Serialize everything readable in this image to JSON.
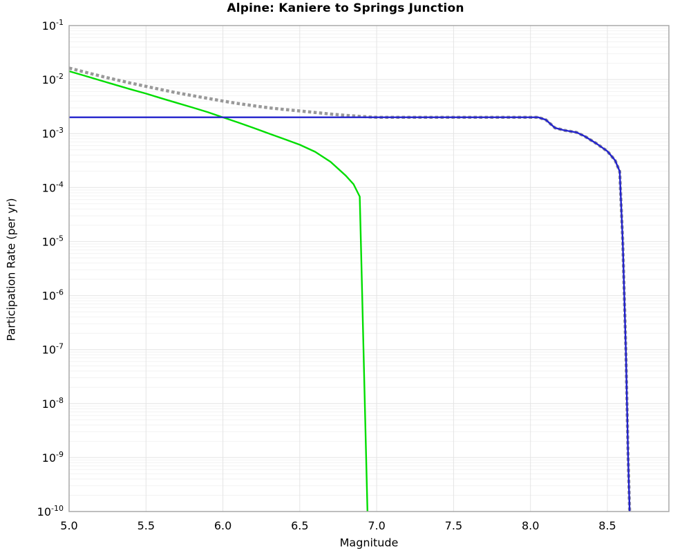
{
  "title": "Alpine: Kaniere to Springs Junction",
  "axes": {
    "x": {
      "label": "Magnitude",
      "tick_values": [
        5.0,
        5.5,
        6.0,
        6.5,
        7.0,
        7.5,
        8.0,
        8.5
      ],
      "tick_labels": [
        "5.0",
        "5.5",
        "6.0",
        "6.5",
        "7.0",
        "7.5",
        "8.0",
        "8.5"
      ]
    },
    "y": {
      "label": "Participation Rate (per yr)",
      "scale": "log",
      "tick_base": "10",
      "tick_exponents": [
        "-1",
        "-2",
        "-3",
        "-4",
        "-5",
        "-6",
        "-7",
        "-8",
        "-9",
        "-10"
      ]
    }
  },
  "colors": {
    "green_line": "#00dd00",
    "blue_line": "#2222cc",
    "gray_dotted": "#999999",
    "grid_major": "#e4e4e4",
    "grid_minor": "#f2f2f2",
    "plot_border": "#a8a8a8",
    "background": "#ffffff",
    "text": "#000000"
  },
  "chart_data": {
    "type": "line",
    "title": "Alpine: Kaniere to Springs Junction",
    "xlabel": "Magnitude",
    "ylabel": "Participation Rate (per yr)",
    "xlim": [
      5.0,
      8.9
    ],
    "ylim": [
      1e-10,
      0.1
    ],
    "yscale": "log",
    "grid": true,
    "legend": false,
    "series": [
      {
        "name": "gray-dotted-total",
        "style": "dotted",
        "color": "#999999",
        "x": [
          5.0,
          5.1,
          5.2,
          5.3,
          5.4,
          5.5,
          5.6,
          5.7,
          5.8,
          5.9,
          6.0,
          6.1,
          6.2,
          6.3,
          6.4,
          6.5,
          6.6,
          6.7,
          6.8,
          6.9,
          7.0,
          7.25,
          7.5,
          7.75,
          8.0,
          8.05,
          8.1,
          8.16,
          8.22,
          8.3,
          8.35,
          8.43,
          8.5,
          8.55,
          8.58,
          8.6,
          8.62,
          8.635,
          8.645
        ],
        "y": [
          0.0163,
          0.0138,
          0.0117,
          0.01,
          0.0086,
          0.0075,
          0.0065,
          0.0057,
          0.00505,
          0.0045,
          0.004,
          0.0036,
          0.00327,
          0.003,
          0.00279,
          0.00262,
          0.00246,
          0.0023,
          0.00217,
          0.00207,
          0.002,
          0.002,
          0.002,
          0.002,
          0.002,
          0.002,
          0.0018,
          0.00127,
          0.00115,
          0.00105,
          0.0009,
          0.00065,
          0.00047,
          0.00032,
          0.0002,
          1e-05,
          1e-07,
          1e-09,
          1e-10
        ]
      },
      {
        "name": "green-curve",
        "style": "solid",
        "color": "#00dd00",
        "x": [
          5.0,
          5.1,
          5.2,
          5.3,
          5.4,
          5.5,
          5.6,
          5.7,
          5.8,
          5.9,
          6.0,
          6.1,
          6.2,
          6.3,
          6.4,
          6.5,
          6.6,
          6.7,
          6.8,
          6.85,
          6.89,
          6.9,
          6.92,
          6.94
        ],
        "y": [
          0.0143,
          0.0118,
          0.0097,
          0.008,
          0.0066,
          0.0055,
          0.0045,
          0.0037,
          0.00305,
          0.0025,
          0.002,
          0.0016,
          0.00127,
          0.001,
          0.00079,
          0.00062,
          0.00046,
          0.0003,
          0.000165,
          0.000115,
          6.8e-05,
          4.6e-06,
          2.2e-08,
          1e-10
        ]
      },
      {
        "name": "blue-curve",
        "style": "solid",
        "color": "#2222cc",
        "x": [
          5.0,
          6.0,
          7.0,
          8.0,
          8.05,
          8.1,
          8.16,
          8.22,
          8.3,
          8.35,
          8.43,
          8.5,
          8.55,
          8.58,
          8.6,
          8.62,
          8.635,
          8.645
        ],
        "y": [
          0.002,
          0.002,
          0.002,
          0.002,
          0.002,
          0.0018,
          0.00127,
          0.00115,
          0.00105,
          0.0009,
          0.00065,
          0.00047,
          0.00032,
          0.0002,
          1e-05,
          1e-07,
          1e-09,
          1e-10
        ]
      }
    ]
  }
}
